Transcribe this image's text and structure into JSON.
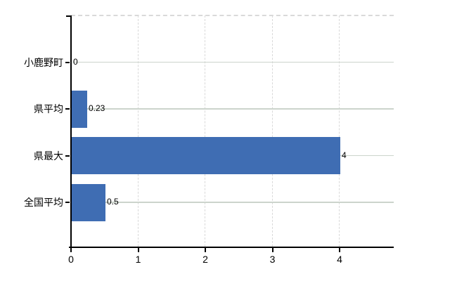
{
  "chart_data": {
    "type": "bar",
    "orientation": "horizontal",
    "title": "",
    "xlabel": "",
    "ylabel": "",
    "categories": [
      "小鹿野町",
      "県平均",
      "県最大",
      "全国平均"
    ],
    "values": [
      0,
      0.23,
      4,
      0.5
    ],
    "value_labels": [
      "0",
      "0.23",
      "4",
      "0.5"
    ],
    "x_ticks": [
      "0",
      "1",
      "2",
      "3",
      "4"
    ],
    "x_tick_values": [
      0,
      1,
      2,
      3,
      4
    ],
    "xlim": [
      0,
      4.8
    ],
    "legend": "none",
    "grid": {
      "horizontal": "solid light line at each category center",
      "vertical": "dashed light line at each x tick (1-4)",
      "top_border": "dashed light line"
    },
    "colors": {
      "bar": "#3f6db3",
      "axis": "#000000",
      "grid_h": "#ccd4cc",
      "grid_v": "#d9d9d9",
      "top_border": "#d9d9d9",
      "background": "#ffffff",
      "text": "#000000"
    }
  }
}
